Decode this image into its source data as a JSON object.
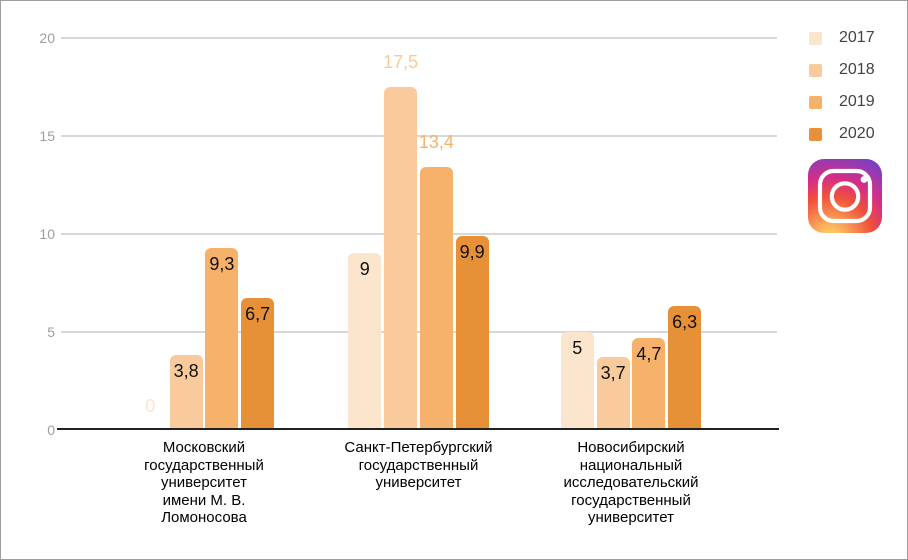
{
  "chart_data": {
    "type": "bar",
    "title": "",
    "xlabel": "",
    "ylabel": "",
    "ylim": [
      0,
      20
    ],
    "yticks": [
      0,
      5,
      10,
      15,
      20
    ],
    "grid": true,
    "legend_position": "right",
    "decimal_separator": ",",
    "categories": [
      {
        "label": "Московский\nгосударственный\nуниверситет\nимени М. В.\nЛомоносова"
      },
      {
        "label": "Санкт-Петербургский\nгосударственный\nуниверситет"
      },
      {
        "label": "Новосибирский\nнациональный\nисследовательский\nгосударственный\nуниверситет"
      }
    ],
    "series": [
      {
        "name": "2017",
        "color": "#fce5cd",
        "values": [
          0,
          9,
          5
        ]
      },
      {
        "name": "2018",
        "color": "#f9cb9c",
        "values": [
          3.8,
          17.5,
          3.7
        ]
      },
      {
        "name": "2019",
        "color": "#f6b26b",
        "values": [
          9.3,
          13.4,
          4.7
        ]
      },
      {
        "name": "2020",
        "color": "#e69138",
        "values": [
          6.7,
          9.9,
          6.3
        ]
      }
    ],
    "data_labels": [
      [
        {
          "text": "0",
          "placement": "base"
        },
        {
          "text": "9",
          "placement": "inside"
        },
        {
          "text": "5",
          "placement": "inside"
        }
      ],
      [
        {
          "text": "3,8",
          "placement": "inside"
        },
        {
          "text": "17,5",
          "placement": "above"
        },
        {
          "text": "3,7",
          "placement": "inside"
        }
      ],
      [
        {
          "text": "9,3",
          "placement": "inside"
        },
        {
          "text": "13,4",
          "placement": "above"
        },
        {
          "text": "4,7",
          "placement": "inside"
        }
      ],
      [
        {
          "text": "6,7",
          "placement": "inside"
        },
        {
          "text": "9,9",
          "placement": "inside"
        },
        {
          "text": "6,3",
          "placement": "inside"
        }
      ]
    ]
  },
  "watermark": {
    "icon": "instagram-logo"
  },
  "colors": {
    "axis_tick_text": "#9e9e9e",
    "inside_label_text": "#111111",
    "category_text": "#000000",
    "legend_text": "#424242",
    "gridline": "#d8d8d8",
    "baseline": "#212121",
    "border": "#9e9e9e",
    "background": "#ffffff"
  }
}
